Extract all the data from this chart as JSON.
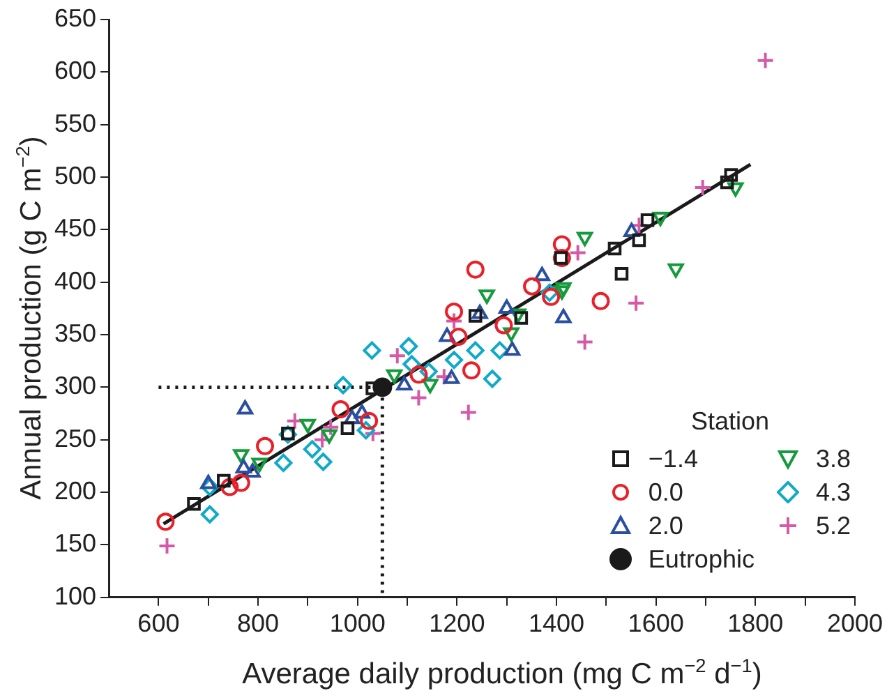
{
  "chart_data": {
    "type": "scatter",
    "xlabel": "Average daily production (mg C m$^{−2}$ d$^{−1}$)",
    "ylabel": "Annual production (g C m$^{−2}$)",
    "legend_title": "Station",
    "legend": "bottom right",
    "grid": false,
    "xlim": [
      500,
      2000
    ],
    "xticks": [
      600,
      {
        "value": 700,
        "label": null
      },
      800,
      {
        "value": 900,
        "label": null
      },
      1000,
      {
        "value": 1100,
        "label": null
      },
      1200,
      {
        "value": 1300,
        "label": null
      },
      1400,
      {
        "value": 1500,
        "label": null
      },
      1600,
      {
        "value": 1700,
        "label": null
      },
      1800,
      {
        "value": 1900,
        "label": null
      },
      2000
    ],
    "ylim": [
      100,
      650
    ],
    "yticks": [
      100,
      150,
      200,
      250,
      300,
      350,
      400,
      450,
      500,
      550,
      600,
      650
    ],
    "series": [
      {
        "name": "−1.4",
        "type": "scatter",
        "marker": "square",
        "color": "#1a1a1a",
        "x": [
          671,
          731,
          860,
          980,
          1030,
          1237,
          1329,
          1409,
          1517,
          1531,
          1566,
          1583,
          1743,
          1751
        ],
        "values": [
          189,
          211,
          256,
          261,
          299,
          368,
          366,
          423,
          432,
          408,
          440,
          459,
          495,
          502
        ]
      },
      {
        "name": "0.0",
        "type": "scatter",
        "marker": "circle",
        "color": "#e8202a",
        "x": [
          614,
          743,
          766,
          814,
          966,
          1023,
          1123,
          1194,
          1203,
          1229,
          1237,
          1294,
          1351,
          1389,
          1411,
          1411,
          1489
        ],
        "values": [
          172,
          205,
          209,
          244,
          279,
          268,
          312,
          372,
          348,
          316,
          412,
          359,
          396,
          386,
          436,
          423,
          382
        ]
      },
      {
        "name": "2.0",
        "type": "scatter",
        "marker": "triangle",
        "color": "#2a4fa0",
        "x": [
          700,
          771,
          774,
          789,
          989,
          1009,
          1094,
          1180,
          1189,
          1246,
          1300,
          1311,
          1371,
          1414,
          1551
        ],
        "values": [
          208,
          223,
          279,
          219,
          270,
          275,
          302,
          348,
          308,
          370,
          375,
          335,
          406,
          366,
          448
        ]
      },
      {
        "name": "Eutrophic",
        "type": "scatter",
        "marker": "circle",
        "color": "#1a1a1a",
        "x": [
          1050
        ],
        "values": [
          300
        ]
      },
      {
        "name": "3.8",
        "type": "scatter",
        "marker": "triangle-down",
        "color": "#159a3c",
        "x": [
          766,
          803,
          900,
          943,
          1074,
          1146,
          1260,
          1309,
          1323,
          1411,
          1414,
          1457,
          1609,
          1640,
          1760
        ],
        "values": [
          236,
          228,
          265,
          255,
          312,
          303,
          388,
          352,
          370,
          392,
          395,
          443,
          462,
          413,
          490
        ]
      },
      {
        "name": "4.3",
        "type": "scatter",
        "marker": "diamond",
        "color": "#10aac8",
        "x": [
          703,
          703,
          851,
          860,
          909,
          931,
          971,
          1017,
          1029,
          1103,
          1109,
          1143,
          1194,
          1237,
          1271,
          1286,
          1386
        ],
        "values": [
          179,
          205,
          228,
          255,
          241,
          229,
          302,
          259,
          335,
          339,
          322,
          315,
          326,
          335,
          308,
          335,
          390
        ]
      },
      {
        "name": "5.2",
        "type": "scatter",
        "marker": "cross",
        "color": "#d45aa8",
        "x": [
          617,
          874,
          929,
          946,
          1031,
          1080,
          1123,
          1174,
          1194,
          1223,
          1443,
          1457,
          1560,
          1566,
          1694,
          1820
        ],
        "values": [
          149,
          268,
          250,
          262,
          256,
          330,
          290,
          310,
          363,
          276,
          428,
          343,
          380,
          454,
          490,
          611
        ]
      },
      {
        "type": "line",
        "marker": "none",
        "line_style": "solid",
        "color": "#1a1a1a",
        "x": [
          610,
          1790
        ],
        "values": [
          170,
          512
        ]
      },
      {
        "type": "line",
        "marker": "none",
        "line_style": "dotted",
        "color": "#1a1a1a",
        "x": [
          600,
          1050,
          1050
        ],
        "values": [
          300,
          300,
          100
        ]
      }
    ]
  }
}
